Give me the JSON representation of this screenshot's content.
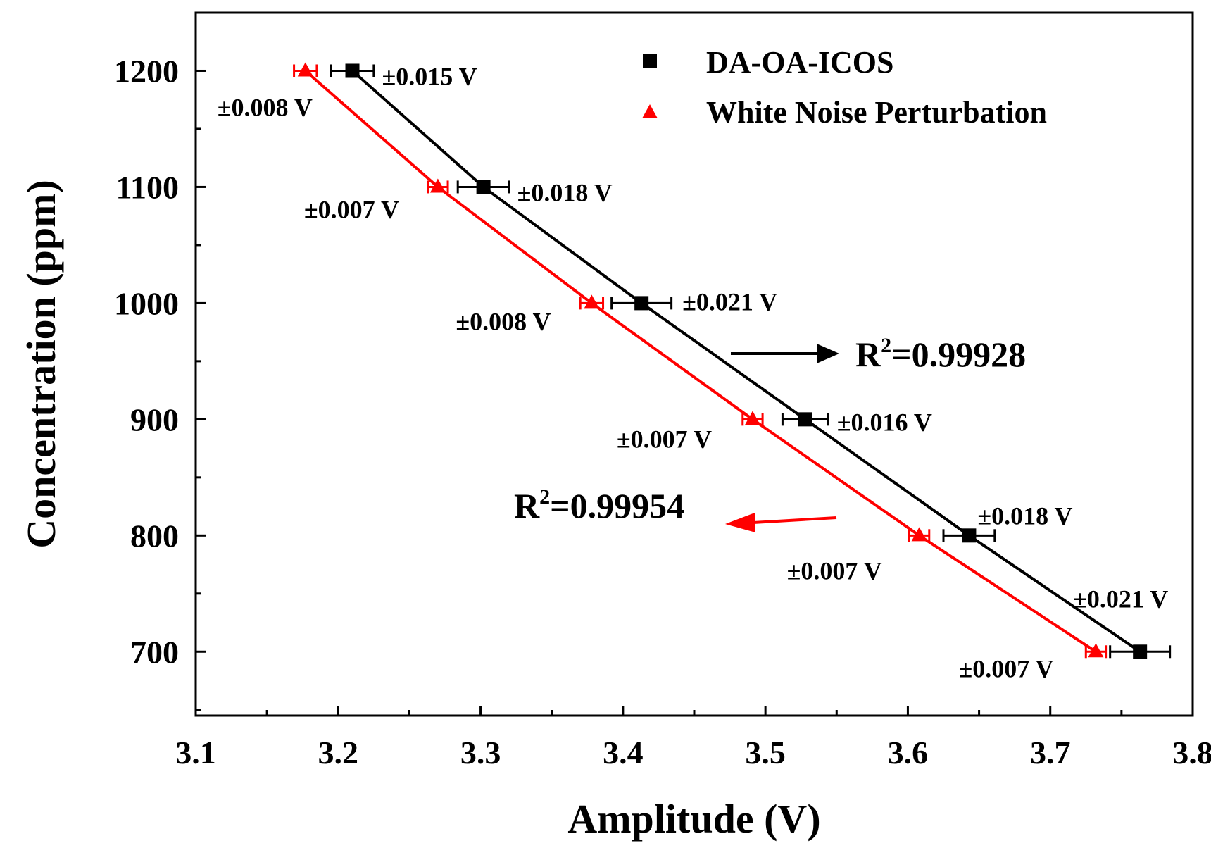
{
  "chart_data": {
    "type": "line",
    "xlabel": "Amplitude (V)",
    "ylabel": "Concentration (ppm)",
    "xlim": [
      3.1,
      3.8
    ],
    "ylim": [
      645,
      1250
    ],
    "x_ticks": [
      "3.1",
      "3.2",
      "3.3",
      "3.4",
      "3.5",
      "3.6",
      "3.7",
      "3.8"
    ],
    "x_tick_values": [
      3.1,
      3.2,
      3.3,
      3.4,
      3.5,
      3.6,
      3.7,
      3.8
    ],
    "y_ticks": [
      "700",
      "800",
      "900",
      "1000",
      "1100",
      "1200"
    ],
    "y_tick_values": [
      700,
      800,
      900,
      1000,
      1100,
      1200
    ],
    "series": [
      {
        "name": "DA-OA-ICOS",
        "color": "#000000",
        "marker": "square",
        "x": [
          3.21,
          3.302,
          3.413,
          3.528,
          3.643,
          3.763
        ],
        "y": [
          1200,
          1100,
          1000,
          900,
          800,
          700
        ],
        "x_err": [
          0.015,
          0.018,
          0.021,
          0.016,
          0.018,
          0.021
        ],
        "error_labels": [
          "±0.015 V",
          "±0.018 V",
          "±0.021 V",
          "±0.016 V",
          "±0.018 V",
          "±0.021 V"
        ],
        "r2": "0.99928"
      },
      {
        "name": "White Noise Perturbation",
        "color": "#ff0000",
        "marker": "triangle",
        "x": [
          3.177,
          3.27,
          3.378,
          3.491,
          3.608,
          3.732
        ],
        "y": [
          1200,
          1100,
          1000,
          900,
          800,
          700
        ],
        "x_err": [
          0.008,
          0.007,
          0.008,
          0.007,
          0.007,
          0.007
        ],
        "error_labels": [
          "±0.008 V",
          "±0.007 V",
          "±0.008 V",
          "±0.007 V",
          "±0.007 V",
          "±0.007 V"
        ],
        "r2": "0.99954"
      }
    ],
    "legend": {
      "position": "top-right",
      "entries": [
        "DA-OA-ICOS",
        "White Noise Perturbation"
      ]
    },
    "annotations": {
      "r2_prefix": "R",
      "r2_superscript": "2",
      "r2_black": "=0.99928",
      "r2_red": "=0.99954"
    },
    "grid": false
  }
}
